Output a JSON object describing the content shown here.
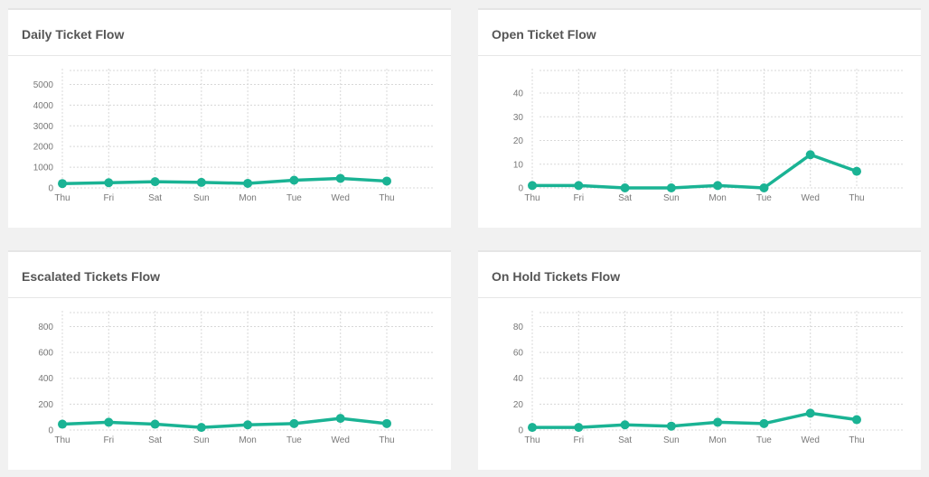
{
  "colors": {
    "line": "#1ab394",
    "grid": "#d8d8d8",
    "text": "#777777"
  },
  "chart_data": [
    {
      "type": "line",
      "title": "Daily Ticket Flow",
      "categories": [
        "Thu",
        "Fri",
        "Sat",
        "Sun",
        "Mon",
        "Tue",
        "Wed",
        "Thu"
      ],
      "series": [
        {
          "values": [
            210,
            250,
            300,
            265,
            220,
            370,
            460,
            330
          ]
        }
      ],
      "yticks": [
        "0",
        "1000",
        "2000",
        "3000",
        "4000",
        "5000"
      ],
      "ylim": [
        0,
        5500
      ],
      "grid": true
    },
    {
      "type": "line",
      "title": "Open Ticket Flow",
      "categories": [
        "Thu",
        "Fri",
        "Sat",
        "Sun",
        "Mon",
        "Tue",
        "Wed",
        "Thu"
      ],
      "series": [
        {
          "values": [
            1,
            1,
            0,
            0,
            1,
            0,
            14,
            7
          ]
        }
      ],
      "yticks": [
        "0",
        "10",
        "20",
        "30",
        "40"
      ],
      "ylim": [
        0,
        48
      ],
      "grid": true
    },
    {
      "type": "line",
      "title": "Escalated Tickets Flow",
      "categories": [
        "Thu",
        "Fri",
        "Sat",
        "Sun",
        "Mon",
        "Tue",
        "Wed",
        "Thu"
      ],
      "series": [
        {
          "values": [
            45,
            60,
            45,
            20,
            40,
            50,
            90,
            50
          ]
        }
      ],
      "yticks": [
        "0",
        "200",
        "400",
        "600",
        "800"
      ],
      "ylim": [
        0,
        880
      ],
      "grid": true
    },
    {
      "type": "line",
      "title": "On Hold Tickets Flow",
      "categories": [
        "Thu",
        "Fri",
        "Sat",
        "Sun",
        "Mon",
        "Tue",
        "Wed",
        "Thu"
      ],
      "series": [
        {
          "values": [
            2,
            2,
            4,
            3,
            6,
            5,
            13,
            8
          ]
        }
      ],
      "yticks": [
        "0",
        "20",
        "40",
        "60",
        "80"
      ],
      "ylim": [
        0,
        88
      ],
      "grid": true
    }
  ]
}
